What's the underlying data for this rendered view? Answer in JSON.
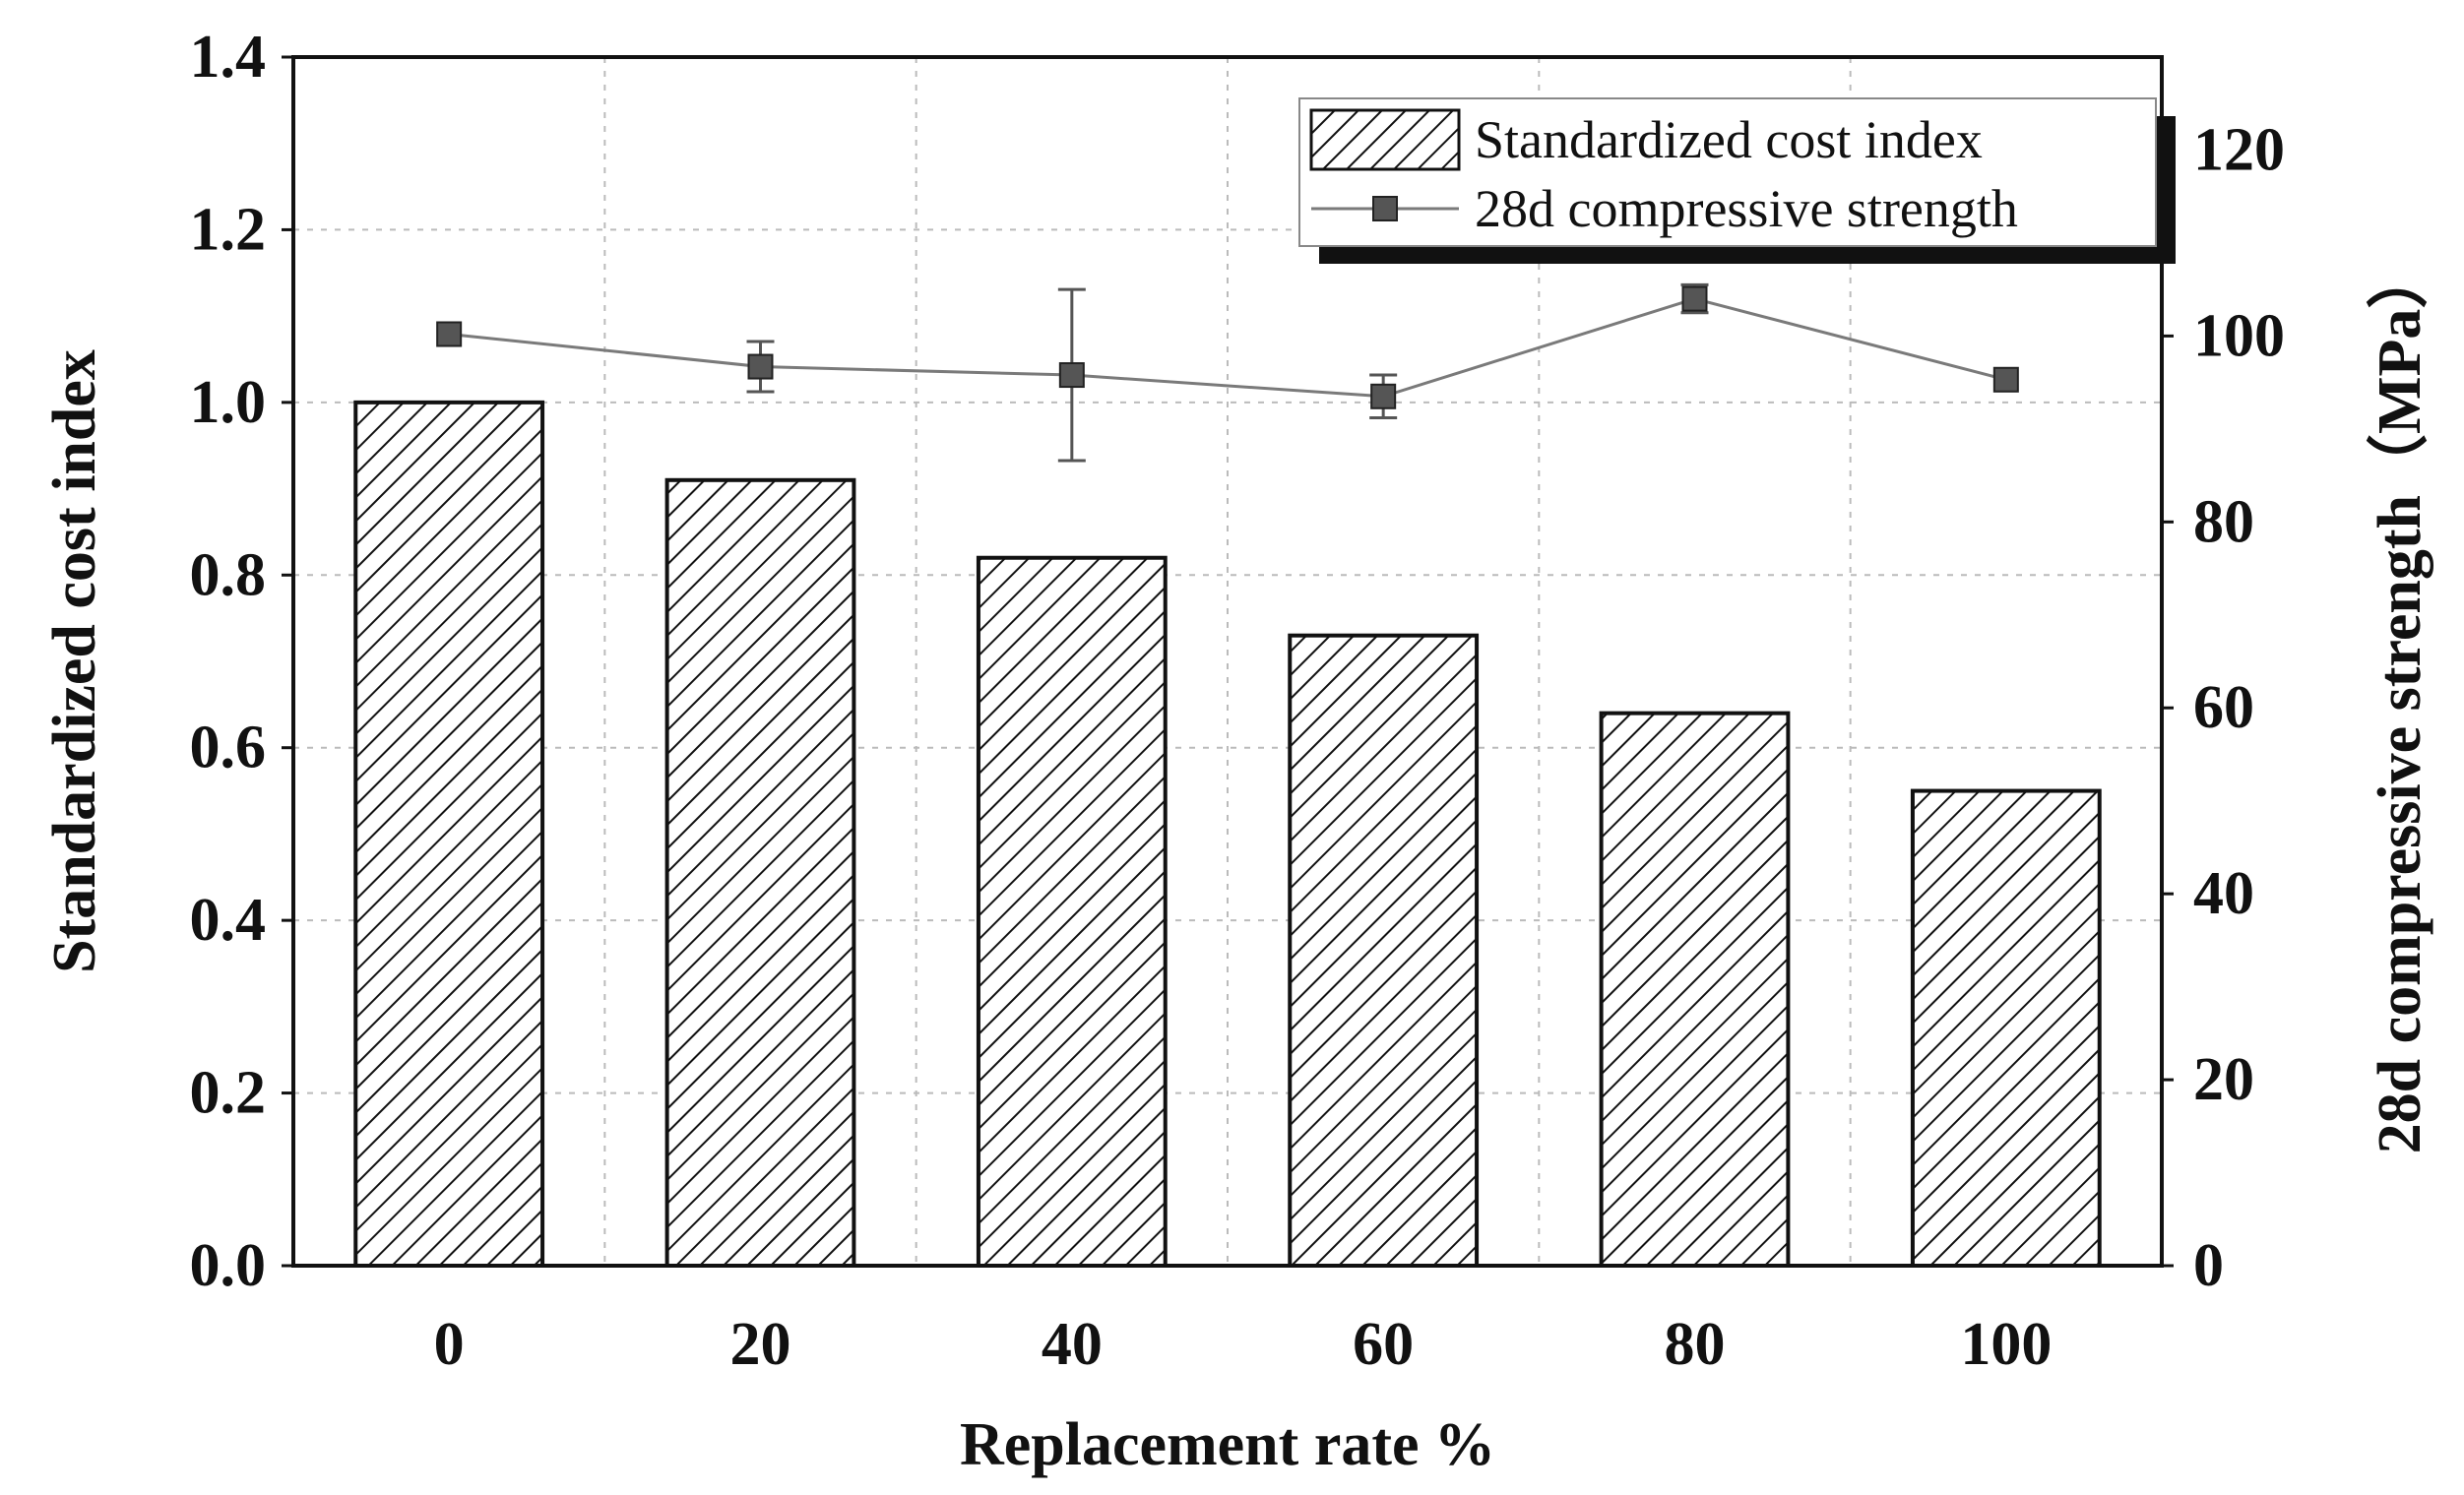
{
  "chart_data": {
    "type": "bar+line",
    "categories": [
      "0",
      "20",
      "40",
      "60",
      "80",
      "100"
    ],
    "xlabel": "Replacement rate %",
    "ylabel_left": "Standardized cost index",
    "ylabel_right": "28d compressive strength（MPa）",
    "ylim_left": [
      0.0,
      1.4
    ],
    "ylim_right": [
      0,
      130
    ],
    "yticks_left": [
      "0.0",
      "0.2",
      "0.4",
      "0.6",
      "0.8",
      "1.0",
      "1.2",
      "1.4"
    ],
    "yticks_right": [
      "0",
      "20",
      "40",
      "60",
      "80",
      "100",
      "120"
    ],
    "grid": true,
    "legend_position": "top-right",
    "series": [
      {
        "name": "Standardized cost index",
        "type": "bar",
        "axis": "left",
        "pattern": "hatched",
        "values": [
          1.0,
          0.91,
          0.82,
          0.73,
          0.64,
          0.55
        ]
      },
      {
        "name": "28d compressive strength",
        "type": "line",
        "axis": "right",
        "marker": "square",
        "values": [
          100.2,
          96.7,
          95.8,
          93.5,
          104.0,
          95.3
        ],
        "error": [
          0.0,
          2.7,
          9.2,
          2.3,
          1.5,
          0.0
        ]
      }
    ],
    "colors": {
      "bar_fill": "#ffffff",
      "bar_stroke": "#111111",
      "line": "#7a7a7a",
      "marker": "#555555",
      "grid": "#bbbbbb"
    }
  }
}
